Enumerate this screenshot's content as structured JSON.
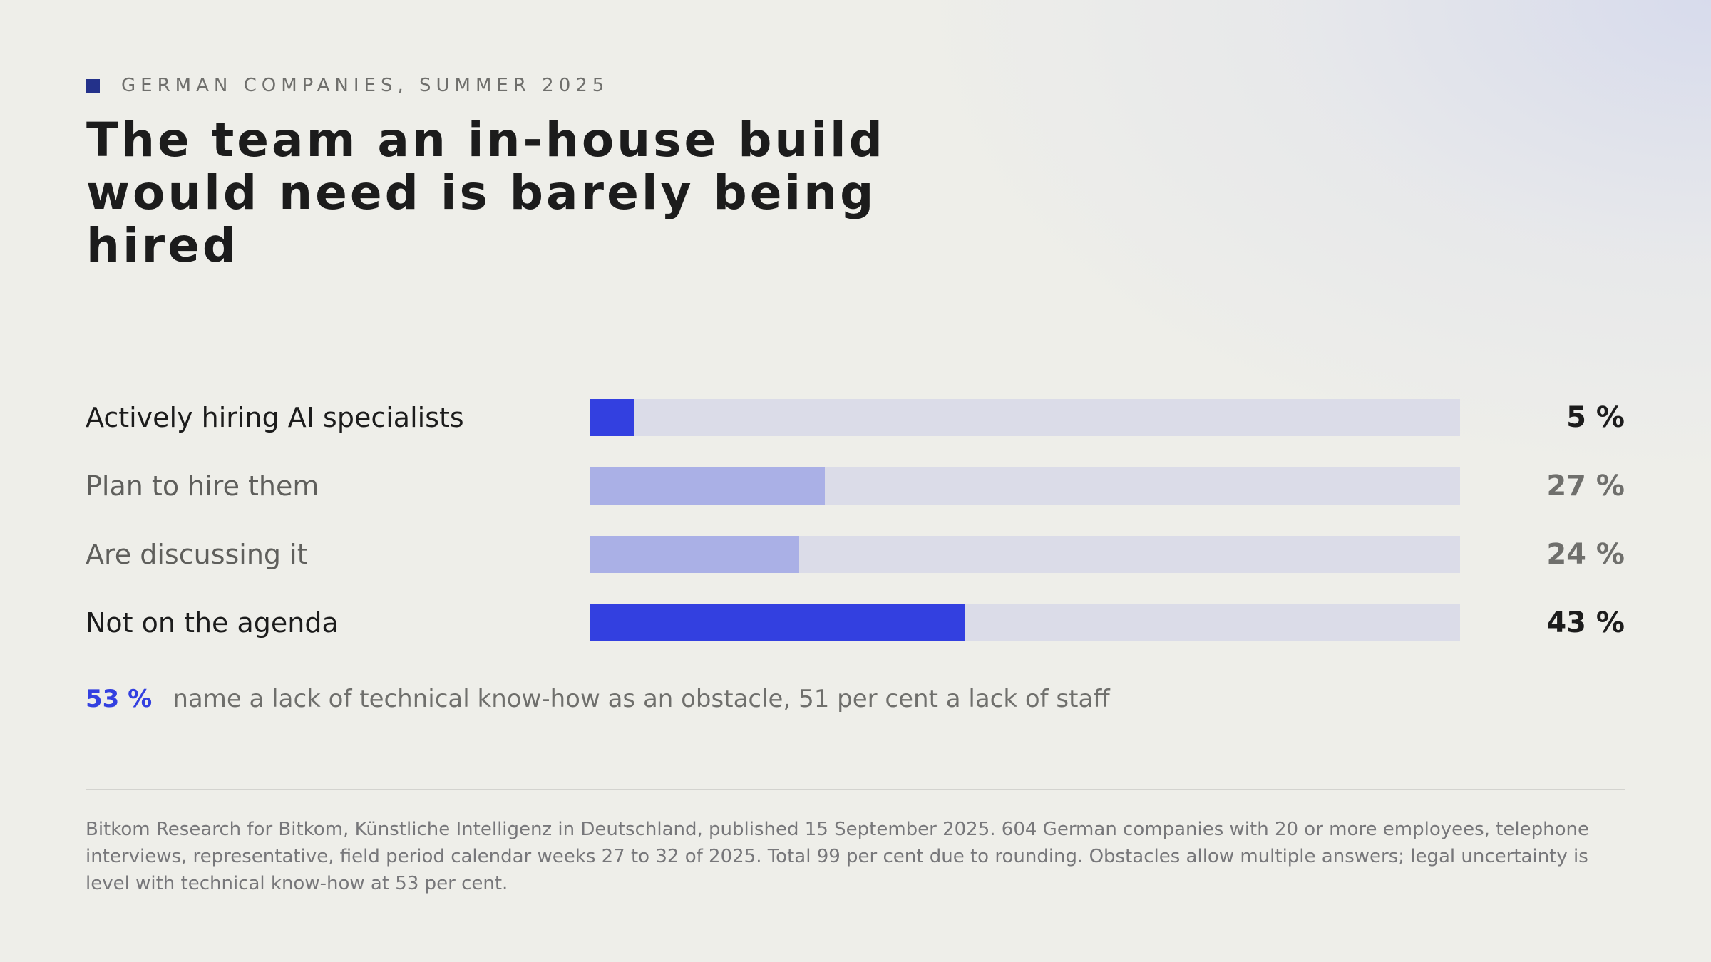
{
  "eyebrow": "GERMAN COMPANIES, SUMMER 2025",
  "title": "The team an in-house build would need is barely being hired",
  "colors": {
    "accent": "#3340e0",
    "accent_light": "#aab0e6",
    "track": "#dbdce8",
    "eyebrow_square": "#23318a"
  },
  "chart_data": {
    "type": "bar",
    "orientation": "horizontal",
    "title": "The team an in-house build would need is barely being hired",
    "categories": [
      "Actively hiring AI specialists",
      "Plan to hire them",
      "Are discussing it",
      "Not on the agenda"
    ],
    "values": [
      5,
      27,
      24,
      43
    ],
    "value_labels": [
      "5 %",
      "27 %",
      "24 %",
      "43 %"
    ],
    "highlighted": [
      true,
      false,
      false,
      true
    ],
    "xlim": [
      0,
      100
    ],
    "unit": "%",
    "grid": false
  },
  "callout": {
    "figure": "53 %",
    "text": "name a lack of technical know-how as an obstacle, 51 per cent a lack of staff"
  },
  "source": "Bitkom Research for Bitkom, Künstliche Intelligenz in Deutschland, published 15 September 2025. 604 German companies with 20 or more employees, telephone interviews, representative, field period calendar weeks 27 to 32 of 2025. Total 99 per cent due to rounding. Obstacles allow multiple answers; legal uncertainty is level with technical know-how at 53 per cent."
}
